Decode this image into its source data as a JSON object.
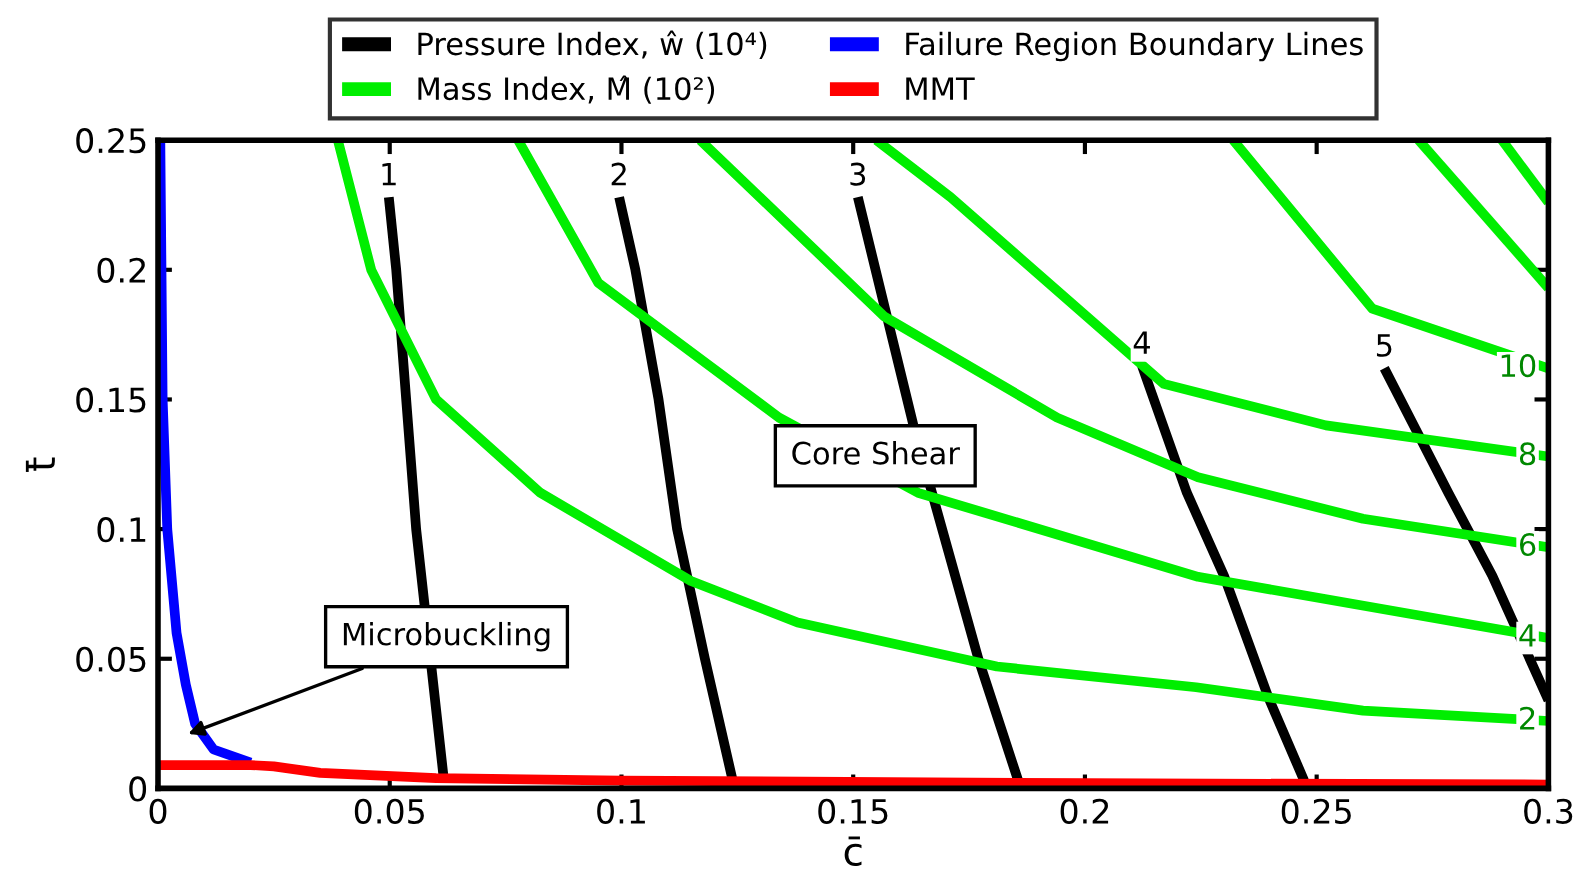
{
  "chart_data": {
    "type": "line",
    "xlabel": "c̄",
    "ylabel": "t̄",
    "xlim": [
      0,
      0.3
    ],
    "ylim": [
      0,
      0.25
    ],
    "xticks": [
      0,
      0.05,
      0.1,
      0.15,
      0.2,
      0.25,
      0.3
    ],
    "yticks": [
      0,
      0.05,
      0.1,
      0.15,
      0.2,
      0.25
    ],
    "grid": false,
    "legend": "top",
    "marker": "none",
    "line_style": "solid",
    "series": [
      {
        "name": "Pressure Index, ŵ (10⁴)",
        "color": "#000000",
        "x": [
          0.0498,
          0.0514,
          0.0557,
          0.0617
        ],
        "values": [
          0.228,
          0.2,
          0.1,
          0.003
        ]
      },
      {
        "color": "#000000",
        "x": [
          0.0995,
          0.103,
          0.108,
          0.112,
          0.118,
          0.124
        ],
        "values": [
          0.228,
          0.2,
          0.15,
          0.1,
          0.05,
          0.003
        ]
      },
      {
        "color": "#000000",
        "x": [
          0.151,
          0.163,
          0.167,
          0.177,
          0.1856
        ],
        "values": [
          0.228,
          0.14,
          0.114,
          0.05,
          0.003
        ]
      },
      {
        "color": "#000000",
        "x": [
          0.2123,
          0.222,
          0.23,
          0.2396,
          0.2473
        ],
        "values": [
          0.163,
          0.114,
          0.082,
          0.035,
          0.003
        ]
      },
      {
        "color": "#000000",
        "x": [
          0.2646,
          0.2784,
          0.2879,
          0.3
        ],
        "values": [
          0.162,
          0.114,
          0.082,
          0.034
        ]
      },
      {
        "name": "Mass Index, M̂ (10²)",
        "color": "#00ee00",
        "x": [
          0.0388,
          0.046,
          0.06,
          0.0825,
          0.115,
          0.138,
          0.181,
          0.224,
          0.26,
          0.3
        ],
        "values": [
          0.25,
          0.2,
          0.15,
          0.114,
          0.08,
          0.064,
          0.047,
          0.039,
          0.03,
          0.026
        ]
      },
      {
        "color": "#00ee00",
        "x": [
          0.0777,
          0.095,
          0.134,
          0.164,
          0.2244,
          0.3
        ],
        "values": [
          0.25,
          0.195,
          0.143,
          0.114,
          0.0816,
          0.058
        ]
      },
      {
        "color": "#00ee00",
        "x": [
          0.117,
          0.1567,
          0.194,
          0.2244,
          0.26,
          0.3
        ],
        "values": [
          0.25,
          0.182,
          0.143,
          0.12,
          0.104,
          0.093
        ]
      },
      {
        "color": "#00ee00",
        "x": [
          0.155,
          0.171,
          0.217,
          0.252,
          0.3
        ],
        "values": [
          0.25,
          0.228,
          0.156,
          0.14,
          0.128
        ]
      },
      {
        "color": "#00ee00",
        "x": [
          0.232,
          0.262,
          0.3
        ],
        "values": [
          0.25,
          0.185,
          0.162
        ]
      },
      {
        "color": "#00ee00",
        "x": [
          0.272,
          0.3
        ],
        "values": [
          0.25,
          0.193
        ]
      },
      {
        "color": "#00ee00",
        "x": [
          0.29,
          0.3
        ],
        "values": [
          0.25,
          0.226
        ]
      },
      {
        "name": "Failure Region Boundary Lines",
        "color": "#0000ff",
        "x": [
          0.0005,
          0.001,
          0.002,
          0.004,
          0.006,
          0.008,
          0.012,
          0.02
        ],
        "values": [
          0.25,
          0.15,
          0.1,
          0.06,
          0.04,
          0.025,
          0.015,
          0.01
        ]
      },
      {
        "name": "MMT",
        "color": "#ff0000",
        "x": [
          0,
          0.02,
          0.025,
          0.035,
          0.06,
          0.1,
          0.2,
          0.3
        ],
        "values": [
          0.009,
          0.009,
          0.0085,
          0.006,
          0.004,
          0.003,
          0.002,
          0.0015
        ]
      }
    ],
    "annotations": [
      {
        "text": "1",
        "x": 0.0498,
        "y": 0.228
      },
      {
        "text": "2",
        "x": 0.0995,
        "y": 0.228
      },
      {
        "text": "3",
        "x": 0.151,
        "y": 0.228
      },
      {
        "text": "4",
        "x": 0.2123,
        "y": 0.163
      },
      {
        "text": "5",
        "x": 0.2646,
        "y": 0.162
      },
      {
        "text": "2",
        "x": 0.3,
        "y": 0.026
      },
      {
        "text": "4",
        "x": 0.3,
        "y": 0.058
      },
      {
        "text": "6",
        "x": 0.3,
        "y": 0.093
      },
      {
        "text": "8",
        "x": 0.3,
        "y": 0.128
      },
      {
        "text": "10",
        "x": 0.3,
        "y": 0.162
      },
      {
        "text": "Microbuckling",
        "x": 0.0065,
        "y": 0.021
      },
      "Core Shear"
    ]
  }
}
